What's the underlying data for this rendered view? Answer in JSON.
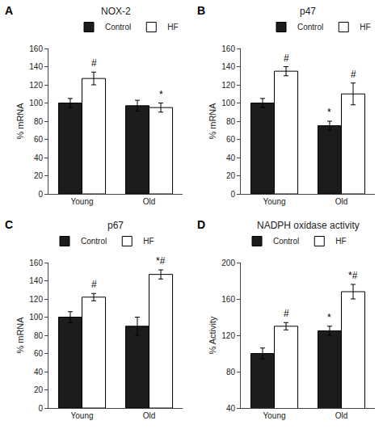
{
  "chart_data": [
    {
      "type": "bar",
      "panel_label": "A",
      "title": "NOX-2",
      "ylabel": "% mRNA",
      "categories": [
        "Young",
        "Old"
      ],
      "series": [
        {
          "name": "Control",
          "color": "#1c1c1c",
          "values": [
            100,
            97
          ],
          "errors": [
            5,
            6
          ]
        },
        {
          "name": "HF",
          "color": "#ffffff",
          "values": [
            127,
            95
          ],
          "errors": [
            7,
            5
          ]
        }
      ],
      "annotations": [
        {
          "series": "HF",
          "category": "Young",
          "text": "#"
        },
        {
          "series": "HF",
          "category": "Old",
          "text": "*"
        }
      ],
      "ylim": [
        0,
        160
      ],
      "yticks": [
        0,
        20,
        40,
        60,
        80,
        100,
        120,
        140,
        160
      ],
      "grid": false,
      "legend": "upper right"
    },
    {
      "type": "bar",
      "panel_label": "B",
      "title": "p47",
      "ylabel": "% mRNA",
      "categories": [
        "Young",
        "Old"
      ],
      "series": [
        {
          "name": "Control",
          "color": "#1c1c1c",
          "values": [
            100,
            75
          ],
          "errors": [
            5,
            5
          ]
        },
        {
          "name": "HF",
          "color": "#ffffff",
          "values": [
            135,
            110
          ],
          "errors": [
            5,
            12
          ]
        }
      ],
      "annotations": [
        {
          "series": "HF",
          "category": "Young",
          "text": "#"
        },
        {
          "series": "Control",
          "category": "Old",
          "text": "*"
        },
        {
          "series": "HF",
          "category": "Old",
          "text": "#"
        }
      ],
      "ylim": [
        0,
        160
      ],
      "yticks": [
        0,
        20,
        40,
        60,
        80,
        100,
        120,
        140,
        160
      ],
      "grid": false,
      "legend": "upper right"
    },
    {
      "type": "bar",
      "panel_label": "C",
      "title": "p67",
      "ylabel": "% mRNA",
      "categories": [
        "Young",
        "Old"
      ],
      "series": [
        {
          "name": "Control",
          "color": "#1c1c1c",
          "values": [
            100,
            90
          ],
          "errors": [
            6,
            10
          ]
        },
        {
          "name": "HF",
          "color": "#ffffff",
          "values": [
            122,
            147
          ],
          "errors": [
            4,
            5
          ]
        }
      ],
      "annotations": [
        {
          "series": "HF",
          "category": "Young",
          "text": "#"
        },
        {
          "series": "HF",
          "category": "Old",
          "text": "*#"
        }
      ],
      "ylim": [
        0,
        160
      ],
      "yticks": [
        0,
        20,
        40,
        60,
        80,
        100,
        120,
        140,
        160
      ],
      "grid": false,
      "legend": "upper left"
    },
    {
      "type": "bar",
      "panel_label": "D",
      "title": "NADPH oxidase activity",
      "ylabel": "% Activity",
      "categories": [
        "Young",
        "Old"
      ],
      "series": [
        {
          "name": "Control",
          "color": "#1c1c1c",
          "values": [
            100,
            125
          ],
          "errors": [
            6,
            5
          ]
        },
        {
          "name": "HF",
          "color": "#ffffff",
          "values": [
            130,
            168
          ],
          "errors": [
            4,
            8
          ]
        }
      ],
      "annotations": [
        {
          "series": "HF",
          "category": "Young",
          "text": "#"
        },
        {
          "series": "Control",
          "category": "Old",
          "text": "*"
        },
        {
          "series": "HF",
          "category": "Old",
          "text": "*#"
        }
      ],
      "ylim": [
        40,
        200
      ],
      "yticks": [
        40,
        80,
        120,
        160,
        200
      ],
      "grid": false,
      "legend": "upper left"
    }
  ]
}
